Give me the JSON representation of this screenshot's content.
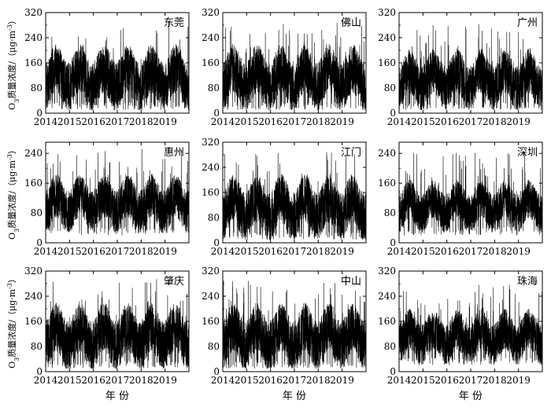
{
  "figure": {
    "ylabel_prefix": "O",
    "ylabel_sub": "3",
    "ylabel_main": "质量浓度/（μg·m",
    "ylabel_sup": "-3",
    "ylabel_close": "）",
    "xlabel": "年 份"
  },
  "chart_data": [
    {
      "type": "line",
      "title": "东莞",
      "ylim": [
        0,
        320
      ],
      "yticks": [
        0,
        80,
        160,
        240,
        320
      ],
      "xticks": [
        "2014",
        "2015",
        "2016",
        "2017",
        "2018",
        "2019"
      ],
      "x_range": [
        "2014-01",
        "2019-12"
      ],
      "y_range_observed": [
        10,
        295
      ],
      "summary": {
        "typical_baseline": [
          40,
          160
        ],
        "peak": 295
      }
    },
    {
      "type": "line",
      "title": "佛山",
      "ylim": [
        0,
        320
      ],
      "yticks": [
        0,
        80,
        160,
        240,
        320
      ],
      "xticks": [
        "2014",
        "2015",
        "2016",
        "2017",
        "2018",
        "2019"
      ],
      "x_range": [
        "2014-01",
        "2019-12"
      ],
      "y_range_observed": [
        10,
        290
      ],
      "summary": {
        "typical_baseline": [
          40,
          160
        ],
        "peak": 290
      }
    },
    {
      "type": "line",
      "title": "广州",
      "ylim": [
        0,
        320
      ],
      "yticks": [
        0,
        80,
        160,
        240,
        320
      ],
      "xticks": [
        "2014",
        "2015",
        "2016",
        "2017",
        "2018",
        "2019"
      ],
      "x_range": [
        "2014-01",
        "2019-12"
      ],
      "y_range_observed": [
        10,
        285
      ],
      "summary": {
        "typical_baseline": [
          40,
          150
        ],
        "peak": 285
      }
    },
    {
      "type": "line",
      "title": "惠州",
      "ylim": [
        0,
        270
      ],
      "yticks": [
        0,
        80,
        160,
        240
      ],
      "xticks": [
        "2014",
        "2015",
        "2016",
        "2017",
        "2018",
        "2019"
      ],
      "x_range": [
        "2014-01",
        "2019-12"
      ],
      "y_range_observed": [
        20,
        255
      ],
      "summary": {
        "typical_baseline": [
          50,
          140
        ],
        "peak": 255
      }
    },
    {
      "type": "line",
      "title": "江门",
      "ylim": [
        0,
        320
      ],
      "yticks": [
        0,
        80,
        160,
        240,
        320
      ],
      "xticks": [
        "2014",
        "2015",
        "2016",
        "2017",
        "2018",
        "2019"
      ],
      "x_range": [
        "2014-01",
        "2019-12"
      ],
      "y_range_observed": [
        10,
        290
      ],
      "summary": {
        "typical_baseline": [
          40,
          160
        ],
        "peak": 290
      }
    },
    {
      "type": "line",
      "title": "深圳",
      "ylim": [
        0,
        270
      ],
      "yticks": [
        0,
        80,
        160,
        240
      ],
      "xticks": [
        "2014",
        "2015",
        "2016",
        "2017",
        "2018",
        "2019"
      ],
      "x_range": [
        "2014-01",
        "2019-12"
      ],
      "y_range_observed": [
        20,
        245
      ],
      "summary": {
        "typical_baseline": [
          50,
          130
        ],
        "peak": 245
      }
    },
    {
      "type": "line",
      "title": "肇庆",
      "ylim": [
        0,
        320
      ],
      "yticks": [
        0,
        80,
        160,
        240,
        320
      ],
      "xticks": [
        "2014",
        "2015",
        "2016",
        "2017",
        "2018",
        "2019"
      ],
      "x_range": [
        "2014-01",
        "2019-12"
      ],
      "y_range_observed": [
        10,
        295
      ],
      "summary": {
        "typical_baseline": [
          40,
          160
        ],
        "peak": 295
      }
    },
    {
      "type": "line",
      "title": "中山",
      "ylim": [
        0,
        320
      ],
      "yticks": [
        0,
        80,
        160,
        240,
        320
      ],
      "xticks": [
        "2014",
        "2015",
        "2016",
        "2017",
        "2018",
        "2019"
      ],
      "x_range": [
        "2014-01",
        "2019-12"
      ],
      "y_range_observed": [
        10,
        295
      ],
      "summary": {
        "typical_baseline": [
          40,
          160
        ],
        "peak": 295
      }
    },
    {
      "type": "line",
      "title": "珠海",
      "ylim": [
        0,
        320
      ],
      "yticks": [
        0,
        80,
        160,
        240,
        320
      ],
      "xticks": [
        "2014",
        "2015",
        "2016",
        "2017",
        "2018",
        "2019"
      ],
      "x_range": [
        "2014-01",
        "2019-12"
      ],
      "y_range_observed": [
        20,
        280
      ],
      "summary": {
        "typical_baseline": [
          50,
          150
        ],
        "peak": 280
      }
    }
  ]
}
